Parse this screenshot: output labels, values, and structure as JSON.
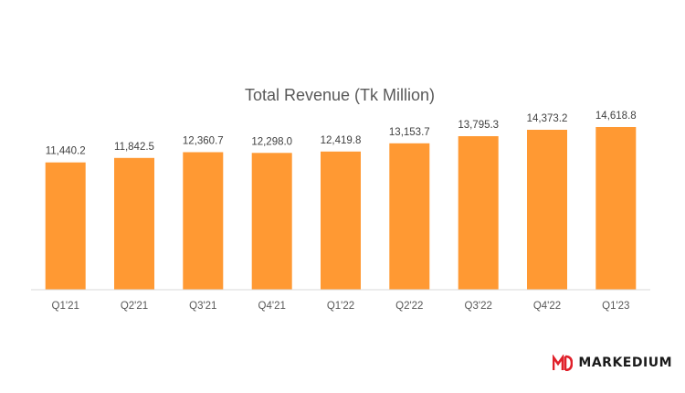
{
  "chart_data": {
    "type": "bar",
    "title": "Total Revenue (Tk Million)",
    "xlabel": "",
    "ylabel": "",
    "categories": [
      "Q1'21",
      "Q2'21",
      "Q3'21",
      "Q4'21",
      "Q1'22",
      "Q2'22",
      "Q3'22",
      "Q4'22",
      "Q1'23"
    ],
    "values": [
      11440.2,
      11842.5,
      12360.7,
      12298.0,
      12419.8,
      13153.7,
      13795.3,
      14373.2,
      14618.8
    ],
    "value_labels": [
      "11,440.2",
      "11,842.5",
      "12,360.7",
      "12,298.0",
      "12,419.8",
      "13,153.7",
      "13,795.3",
      "14,373.2",
      "14,618.8"
    ],
    "ylim": [
      0,
      17000
    ],
    "grid": false,
    "legend": "none",
    "colors": {
      "bar": "#FF9933",
      "axis": "#D9D9D9"
    }
  },
  "brand": {
    "name": "MARKEDIUM",
    "logo_icon": "md-logo-icon",
    "logo_color": "#E0202A"
  }
}
